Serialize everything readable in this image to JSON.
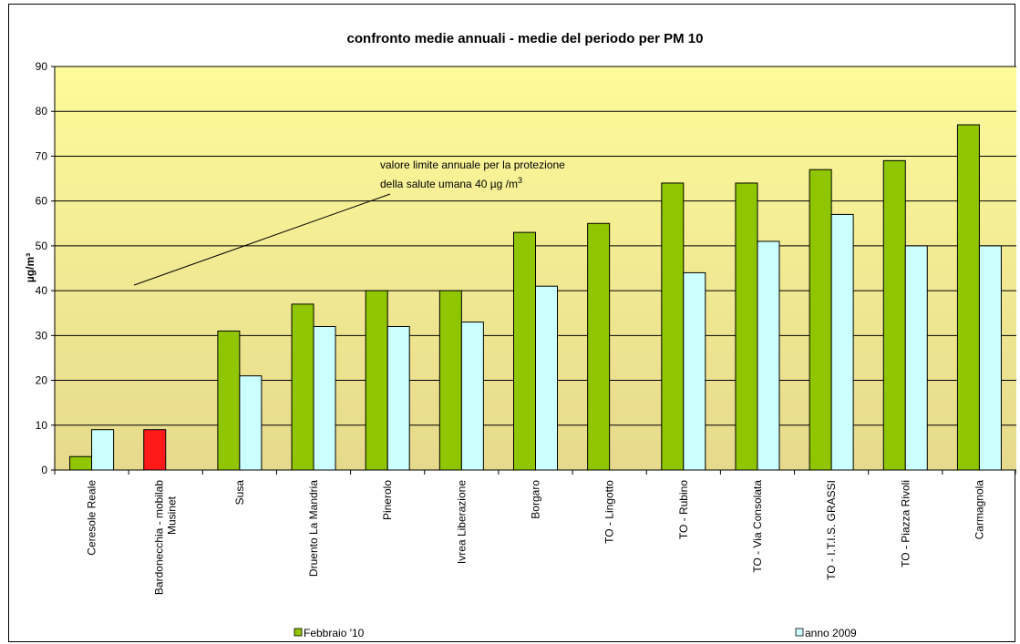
{
  "chart_data": {
    "type": "bar",
    "title": "confronto medie annuali - medie del periodo per PM 10",
    "ylabel": "µg/m³",
    "ylim": [
      0,
      90
    ],
    "yticks": [
      0,
      10,
      20,
      30,
      40,
      50,
      60,
      70,
      80,
      90
    ],
    "grid": true,
    "legend_position": "bottom",
    "categories": [
      "Ceresole Reale",
      "Bardonecchia - mobilab Musinet",
      "Susa",
      "Druento La Mandria",
      "Pinerolo",
      "Ivrea Liberazione",
      "Borgaro",
      "TO - Lingotto",
      "TO - Rubino",
      "TO - Via Consolata",
      "TO - I.T.I.S. GRASSI",
      "TO - Piazza Rivoli",
      "Carmagnola"
    ],
    "series": [
      {
        "name": "Febbraio '10",
        "color": "#8fc600",
        "values": [
          3,
          null,
          31,
          37,
          40,
          40,
          53,
          55,
          64,
          64,
          67,
          69,
          77
        ],
        "highlight": {
          "index": 1,
          "value": 9,
          "color": "#ff1a1a"
        }
      },
      {
        "name": "anno 2009",
        "color": "#ccffff",
        "values": [
          9,
          null,
          21,
          32,
          32,
          33,
          41,
          null,
          44,
          51,
          57,
          50,
          50
        ]
      }
    ],
    "annotation": {
      "line1": "valore limite annuale per la protezione",
      "line2": "della salute umana 40 µg /m",
      "sup": "3"
    }
  }
}
